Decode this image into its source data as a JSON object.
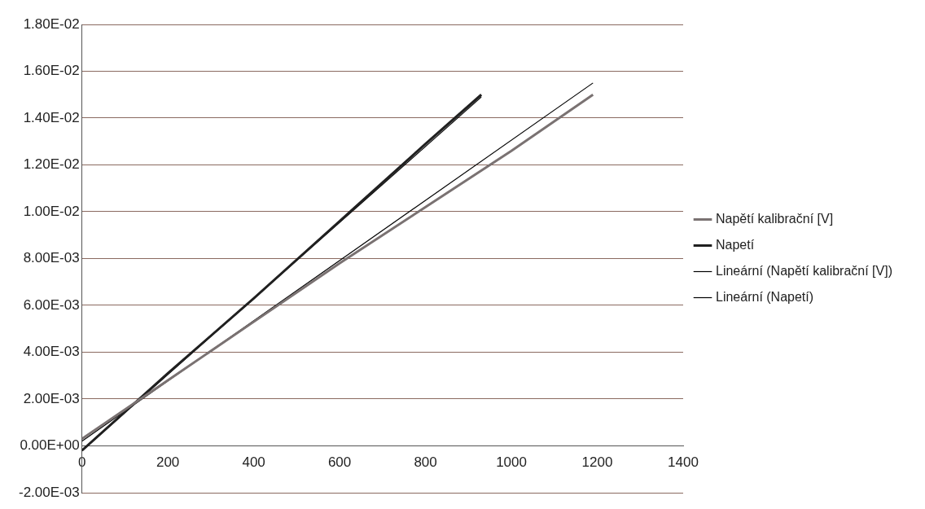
{
  "chart_data": {
    "type": "line",
    "xlim": [
      0,
      1400
    ],
    "xticks": [
      0,
      200,
      400,
      600,
      800,
      1000,
      1200,
      1400
    ],
    "ylim": [
      -0.002,
      0.018
    ],
    "yticks": [
      {
        "value": -0.002,
        "label": "-2.00E-03"
      },
      {
        "value": 0,
        "label": "0.00E+00"
      },
      {
        "value": 0.002,
        "label": "2.00E-03"
      },
      {
        "value": 0.004,
        "label": "4.00E-03"
      },
      {
        "value": 0.006,
        "label": "6.00E-03"
      },
      {
        "value": 0.008,
        "label": "8.00E-03"
      },
      {
        "value": 0.01,
        "label": "1.00E-02"
      },
      {
        "value": 0.012,
        "label": "1.20E-02"
      },
      {
        "value": 0.014,
        "label": "1.40E-02"
      },
      {
        "value": 0.016,
        "label": "1.60E-02"
      },
      {
        "value": 0.018,
        "label": "1.80E-02"
      }
    ],
    "grid": "y",
    "legend": "right",
    "marker": "none",
    "line_style": "solid",
    "series": [
      {
        "name": "Napětí kalibrační [V]",
        "color": "#7a7272",
        "x": [
          0,
          200,
          400,
          600,
          800,
          1000,
          1190
        ],
        "values": [
          0.0003,
          0.0028,
          0.0053,
          0.0078,
          0.0102,
          0.0126,
          0.015
        ]
      },
      {
        "name": "Napetí",
        "color": "#202020",
        "x": [
          0,
          200,
          400,
          600,
          800,
          930
        ],
        "values": [
          -0.0002,
          0.0031,
          0.0063,
          0.0096,
          0.0129,
          0.015
        ]
      },
      {
        "name": "Lineární (Napětí kalibrační [V])",
        "color": "#000000",
        "x": [
          0,
          1190
        ],
        "values": [
          0.0002,
          0.0155
        ]
      },
      {
        "name": "Lineární (Napetí)",
        "color": "#000000",
        "x": [
          0,
          930
        ],
        "values": [
          -0.0002,
          0.0149
        ]
      }
    ]
  }
}
